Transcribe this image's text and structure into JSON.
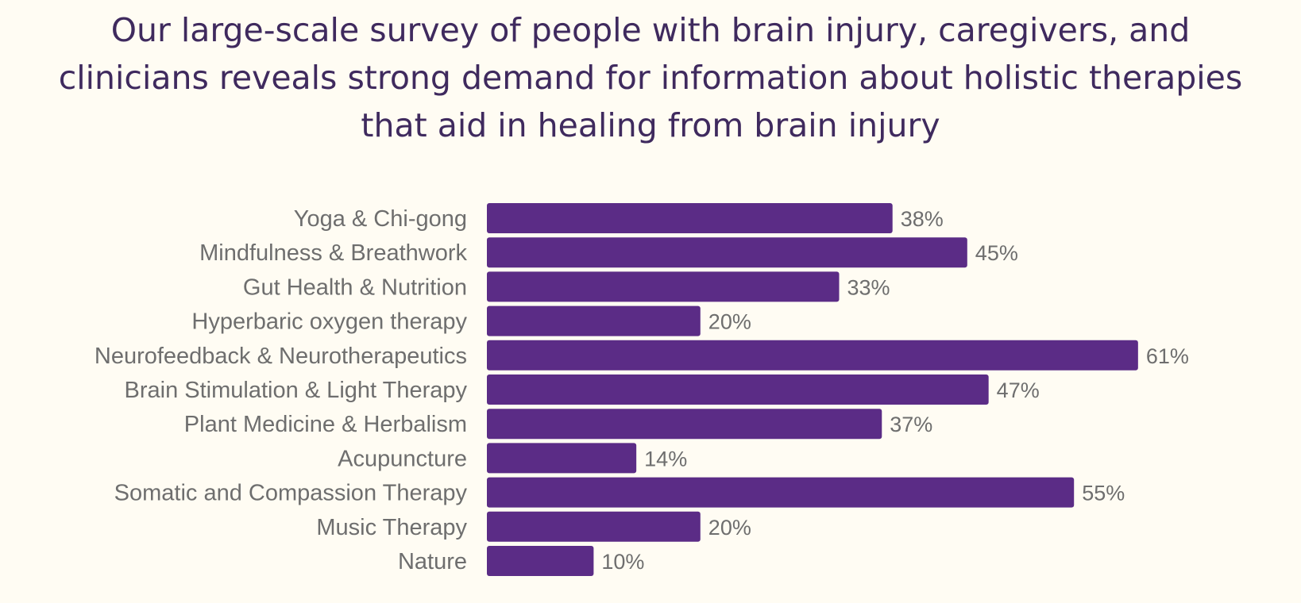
{
  "title": "Our large-scale survey of people with brain injury, caregivers, and clinicians reveals strong demand for information about holistic therapies that aid in healing from brain injury",
  "colors": {
    "bar": "#5b2c86",
    "title": "#3f2a5e",
    "label": "#6e6e6e",
    "background": "#fffcf3"
  },
  "chart_data": {
    "type": "bar",
    "orientation": "horizontal",
    "categories": [
      "Yoga & Chi-gong",
      "Mindfulness & Breathwork",
      "Gut Health & Nutrition",
      "Hyperbaric oxygen therapy",
      "Neurofeedback & Neurotherapeutics",
      "Brain Stimulation & Light Therapy",
      "Plant Medicine & Herbalism",
      "Acupuncture",
      "Somatic and Compassion Therapy",
      "Music Therapy",
      "Nature"
    ],
    "values": [
      38,
      45,
      33,
      20,
      61,
      47,
      37,
      14,
      55,
      20,
      10
    ],
    "value_labels": [
      "38%",
      "45%",
      "33%",
      "20%",
      "61%",
      "47%",
      "37%",
      "14%",
      "55%",
      "20%",
      "10%"
    ],
    "unit": "%",
    "title": "",
    "xlabel": "",
    "ylabel": "",
    "grid": false,
    "legend": "none"
  }
}
